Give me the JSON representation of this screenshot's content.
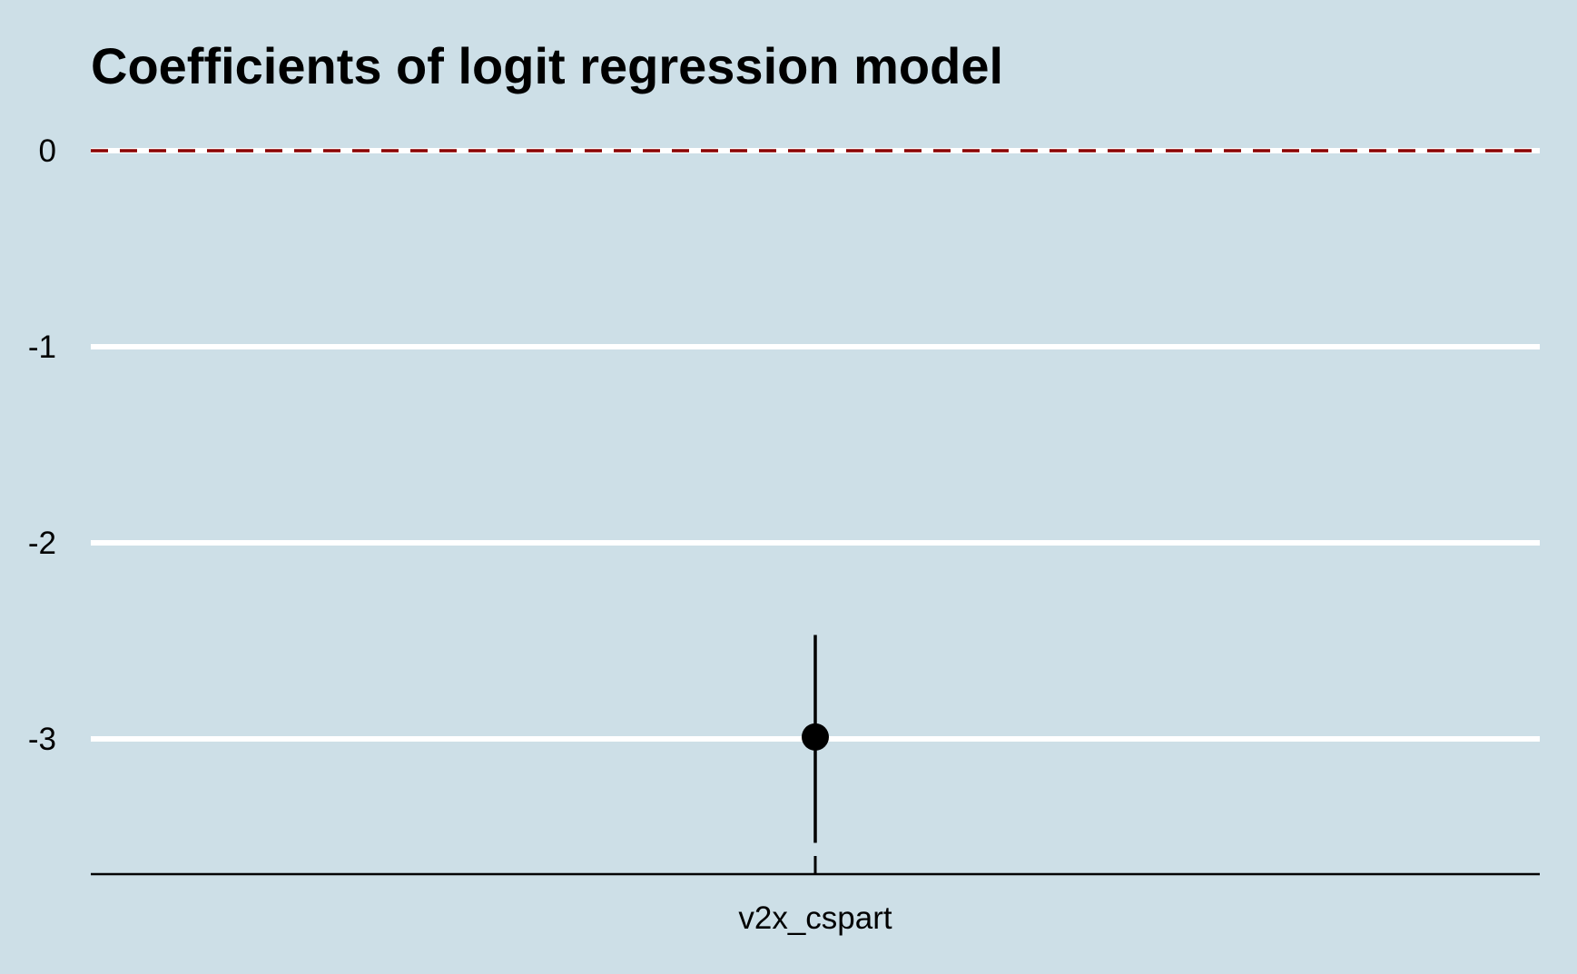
{
  "chart_data": {
    "type": "scatter",
    "title": "Coefficients of logit regression model",
    "xlabel": "",
    "ylabel": "",
    "categories": [
      "v2x_cspart"
    ],
    "points": [
      {
        "category": "v2x_cspart",
        "estimate": -2.99,
        "ci_low": -3.53,
        "ci_high": -2.47
      }
    ],
    "yticks": [
      0,
      -1,
      -2,
      -3
    ],
    "ytick_labels": [
      "0",
      "-1",
      "-2",
      "-3"
    ],
    "ylim": [
      -3.7,
      0
    ],
    "reference_line": {
      "y": 0,
      "style": "dashed",
      "color": "#8b0000"
    },
    "grid": "horizontal",
    "colors": {
      "background": "#cddfe7",
      "grid": "#ffffff",
      "point": "#000000"
    }
  }
}
